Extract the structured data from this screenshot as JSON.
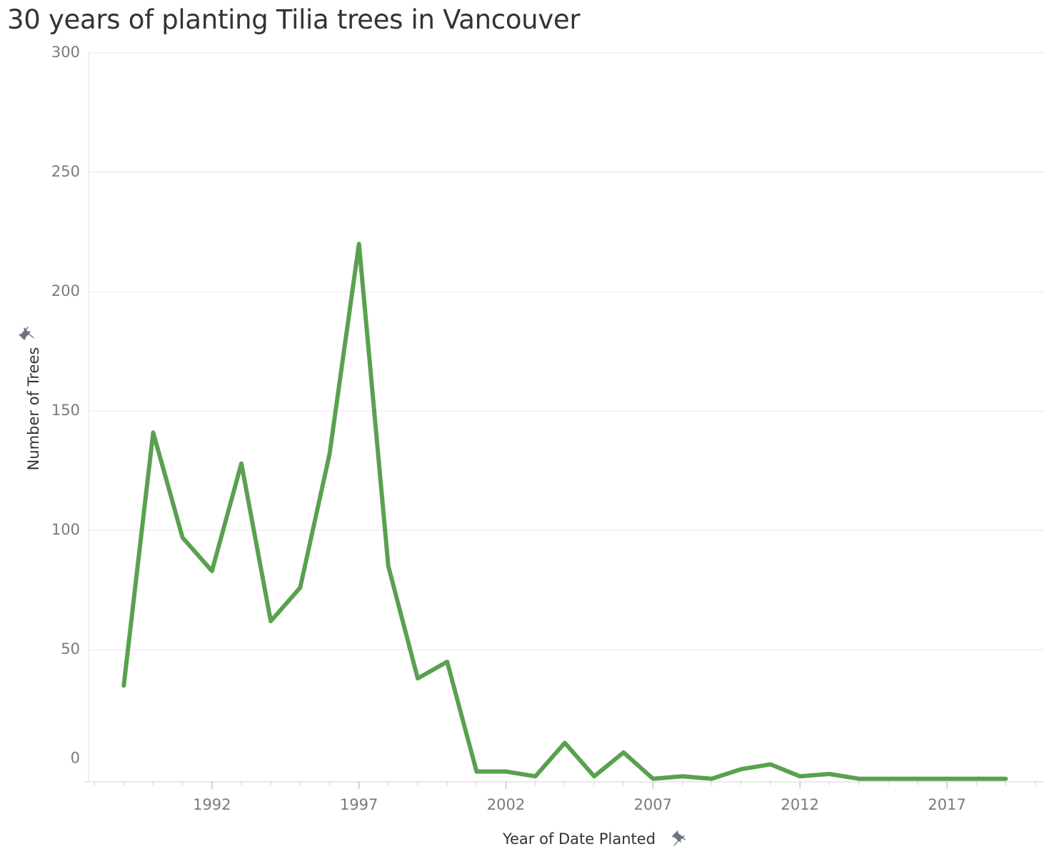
{
  "page": {
    "title": "30 years of planting Tilia trees in Vancouver"
  },
  "chart_data": {
    "type": "line",
    "title": "30 years of planting Tilia trees in Vancouver",
    "xlabel": "Year of Date Planted",
    "ylabel": "Number of Trees",
    "x": [
      1989,
      1990,
      1991,
      1992,
      1993,
      1994,
      1995,
      1996,
      1997,
      1998,
      1999,
      2000,
      2001,
      2002,
      2003,
      2004,
      2005,
      2006,
      2007,
      2008,
      2009,
      2010,
      2011,
      2012,
      2013,
      2014,
      2015,
      2016,
      2017,
      2018,
      2019
    ],
    "series": [
      {
        "values": [
          35,
          141,
          97,
          83,
          128,
          62,
          76,
          132,
          220,
          85,
          38,
          45,
          -1,
          -1,
          -3,
          11,
          -3,
          7,
          -4,
          -3,
          -4,
          0,
          2,
          -3,
          -2,
          -4,
          -4,
          -4,
          -4,
          -4,
          -4
        ],
        "color": "#59a14f"
      }
    ],
    "xticks": [
      "1992",
      "1997",
      "2002",
      "2007",
      "2012",
      "2017"
    ],
    "yticks": [
      "0",
      "50",
      "100",
      "150",
      "200",
      "250",
      "300"
    ],
    "ylim": [
      -5,
      300
    ],
    "xlim": [
      1987.9,
      2020.3
    ],
    "grid": true,
    "pinned_axes": [
      "x",
      "y"
    ],
    "icons": {
      "x_axis": "pin-icon",
      "y_axis": "pin-icon"
    }
  }
}
